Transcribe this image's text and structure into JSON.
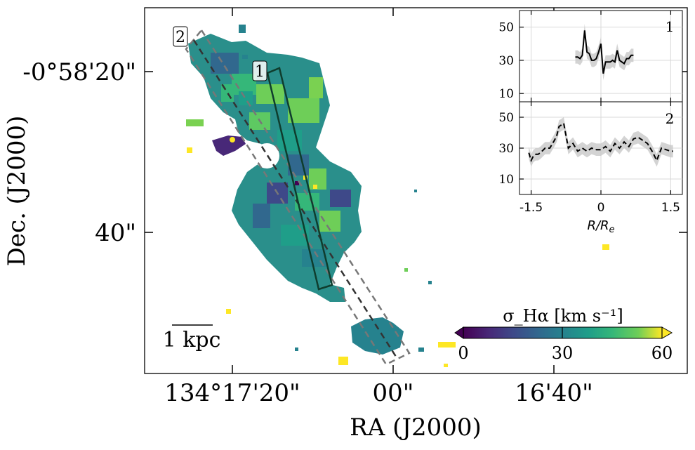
{
  "chart_data": [
    {
      "type": "heatmap",
      "description_keys": "main map panel",
      "xlabel": "RA (J2000)",
      "ylabel": "Dec. (J2000)",
      "xticks": [
        "134°17'20\"",
        "00\"",
        "16'40\""
      ],
      "yticks": [
        "-0°58'20\"",
        "40\""
      ],
      "colorbar": {
        "label": "σ_Hα [km s⁻¹]",
        "ticks": [
          "0",
          "30",
          "60"
        ],
        "range": [
          0,
          60
        ],
        "colormap": "viridis",
        "extend": "both"
      },
      "scalebar": "1 kpc",
      "slit_labels": [
        "1",
        "2"
      ]
    },
    {
      "type": "line",
      "panel_label": "1",
      "x": [
        -0.55,
        -0.5,
        -0.45,
        -0.4,
        -0.35,
        -0.3,
        -0.25,
        -0.2,
        -0.15,
        -0.1,
        -0.05,
        0.0,
        0.05,
        0.1,
        0.15,
        0.2,
        0.25,
        0.3,
        0.35,
        0.4,
        0.45,
        0.5,
        0.55,
        0.6,
        0.65,
        0.7
      ],
      "series": [
        {
          "values": [
            32,
            32,
            31,
            33,
            48,
            35,
            34,
            30,
            30,
            31,
            35,
            40,
            22,
            29,
            29,
            29,
            30,
            29,
            36,
            30,
            29,
            28,
            31,
            31,
            33,
            33
          ],
          "style": "solid"
        }
      ],
      "yticks": [
        10,
        30,
        50
      ],
      "ylim": [
        5,
        60
      ],
      "xlim": [
        -1.75,
        1.75
      ]
    },
    {
      "type": "line",
      "panel_label": "2",
      "xlabel": "R/R_e",
      "x": [
        -1.55,
        -1.5,
        -1.45,
        -1.4,
        -1.35,
        -1.3,
        -1.2,
        -1.1,
        -1.0,
        -0.95,
        -0.9,
        -0.85,
        -0.8,
        -0.75,
        -0.7,
        -0.6,
        -0.5,
        -0.4,
        -0.3,
        -0.2,
        -0.1,
        0.0,
        0.1,
        0.2,
        0.3,
        0.4,
        0.5,
        0.6,
        0.7,
        0.8,
        0.9,
        1.0,
        1.1,
        1.2,
        1.3,
        1.4,
        1.5,
        1.55
      ],
      "series": [
        {
          "values": [
            27,
            22,
            25,
            26,
            26,
            27,
            30,
            30,
            35,
            38,
            44,
            45,
            46,
            38,
            30,
            33,
            28,
            30,
            28,
            30,
            29,
            29,
            31,
            28,
            33,
            30,
            34,
            31,
            36,
            37,
            35,
            33,
            28,
            22,
            30,
            29,
            28,
            28
          ],
          "style": "dashed"
        }
      ],
      "xticks": [
        "-1.5",
        "0",
        "1.5"
      ],
      "yticks": [
        10,
        30,
        50
      ],
      "ylim": [
        0,
        60
      ],
      "xlim": [
        -1.75,
        1.75
      ]
    }
  ],
  "colors": {
    "line": "#000000",
    "band": "#c8c8c8",
    "grid": "#d9d9d9",
    "slit1": "#0f3d2e",
    "slit2": "#555555"
  }
}
